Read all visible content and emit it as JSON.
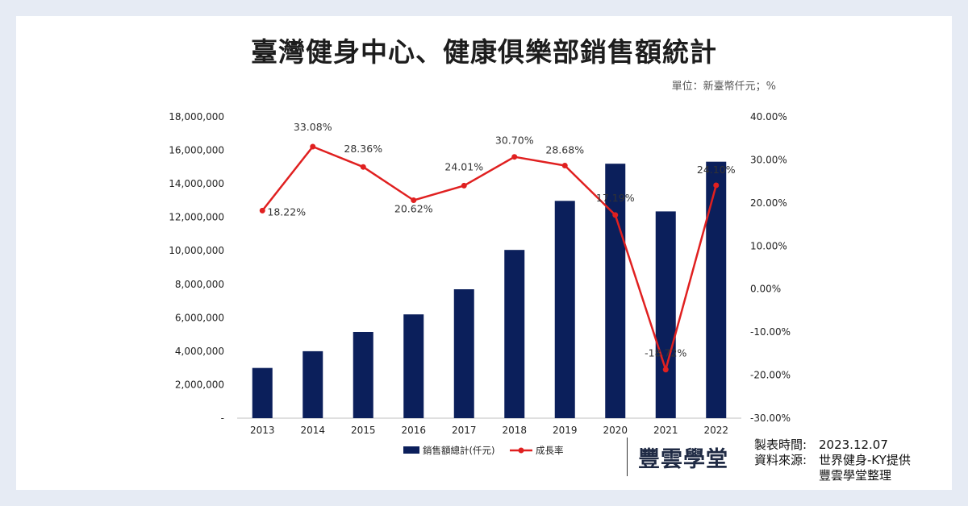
{
  "title": "臺灣健身中心、健康俱樂部銷售額統計",
  "unit_note": "單位：新臺幣仟元；%",
  "chart_data": {
    "type": "bar+line",
    "categories": [
      "2013",
      "2014",
      "2015",
      "2016",
      "2017",
      "2018",
      "2019",
      "2020",
      "2021",
      "2022"
    ],
    "series": [
      {
        "name": "銷售額總計(仟元)",
        "type": "bar",
        "axis": "left",
        "color": "#0b1f5b",
        "values": [
          3000000,
          4000000,
          5150000,
          6200000,
          7700000,
          10050000,
          12980000,
          15200000,
          12350000,
          15320000
        ]
      },
      {
        "name": "成長率",
        "type": "line",
        "axis": "right",
        "color": "#e02020",
        "values": [
          18.22,
          33.08,
          28.36,
          20.62,
          24.01,
          30.7,
          28.68,
          17.19,
          -18.72,
          24.1
        ],
        "labels": [
          "18.22%",
          "33.08%",
          "28.36%",
          "20.62%",
          "24.01%",
          "30.70%",
          "28.68%",
          "17.19%",
          "-18.72%",
          "24.10%"
        ]
      }
    ],
    "y_left": {
      "ylim": [
        0,
        18000000
      ],
      "ticks": [
        "-",
        "2,000,000",
        "4,000,000",
        "6,000,000",
        "8,000,000",
        "10,000,000",
        "12,000,000",
        "14,000,000",
        "16,000,000",
        "18,000,000"
      ]
    },
    "y_right": {
      "ylim": [
        -30,
        40
      ],
      "ticks": [
        "-30.00%",
        "-20.00%",
        "-10.00%",
        "0.00%",
        "10.00%",
        "20.00%",
        "30.00%",
        "40.00%"
      ]
    },
    "grid": false,
    "legend_position": "bottom"
  },
  "footer": {
    "brand": "豐雲學堂",
    "made_label": "製表時間:",
    "made_value": "2023.12.07",
    "source_label": "資料來源:",
    "source_value_1": "世界健身-KY提供",
    "source_value_2": "豐雲學堂整理"
  }
}
